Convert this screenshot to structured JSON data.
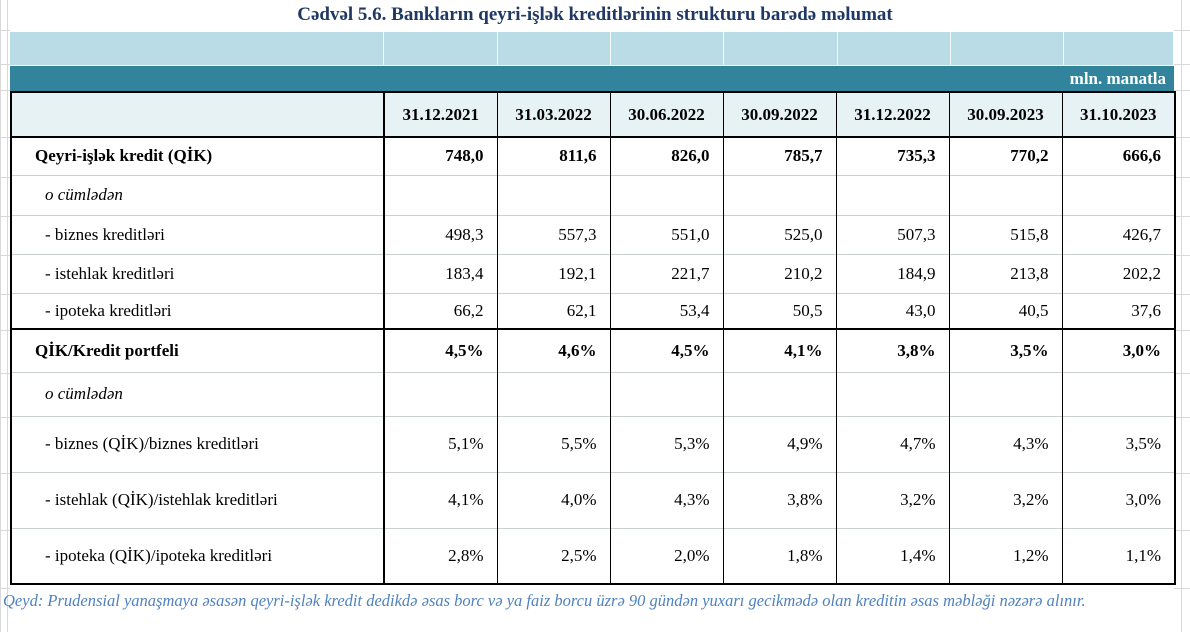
{
  "title": "Cədvəl 5.6. Bankların qeyri-işlək kreditlərinin strukturu barədə məlumat",
  "unit_label": "mln. manatla",
  "table": {
    "columns": [
      "31.12.2021",
      "31.03.2022",
      "30.06.2022",
      "30.09.2022",
      "31.12.2022",
      "30.09.2023",
      "31.10.2023"
    ],
    "rows": [
      {
        "label": "Qeyri-işlək kredit (QİK)",
        "emphasis": "bold",
        "section_start": false,
        "values": [
          "748,0",
          "811,6",
          "826,0",
          "785,7",
          "735,3",
          "770,2",
          "666,6"
        ]
      },
      {
        "label": "o cümlədən",
        "emphasis": "italic",
        "section_start": false,
        "values": [
          "",
          "",
          "",
          "",
          "",
          "",
          ""
        ]
      },
      {
        "label": "- biznes kreditləri",
        "emphasis": "plain",
        "section_start": false,
        "values": [
          "498,3",
          "557,3",
          "551,0",
          "525,0",
          "507,3",
          "515,8",
          "426,7"
        ]
      },
      {
        "label": "- istehlak kreditləri",
        "emphasis": "plain",
        "section_start": false,
        "values": [
          "183,4",
          "192,1",
          "221,7",
          "210,2",
          "184,9",
          "213,8",
          "202,2"
        ]
      },
      {
        "label": "- ipoteka kreditləri",
        "emphasis": "plain",
        "section_start": false,
        "values": [
          "66,2",
          "62,1",
          "53,4",
          "50,5",
          "43,0",
          "40,5",
          "37,6"
        ]
      },
      {
        "label": "QİK/Kredit portfeli",
        "emphasis": "bold",
        "section_start": true,
        "values": [
          "4,5%",
          "4,6%",
          "4,5%",
          "4,1%",
          "3,8%",
          "3,5%",
          "3,0%"
        ]
      },
      {
        "label": "o cümlədən",
        "emphasis": "italic",
        "section_start": false,
        "values": [
          "",
          "",
          "",
          "",
          "",
          "",
          ""
        ]
      },
      {
        "label": "- biznes (QİK)/biznes kreditləri",
        "emphasis": "plain",
        "section_start": false,
        "values": [
          "5,1%",
          "5,5%",
          "5,3%",
          "4,9%",
          "4,7%",
          "4,3%",
          "3,5%"
        ]
      },
      {
        "label": "- istehlak (QİK)/istehlak kreditləri",
        "emphasis": "plain",
        "section_start": false,
        "values": [
          "4,1%",
          "4,0%",
          "4,3%",
          "3,8%",
          "3,2%",
          "3,2%",
          "3,0%"
        ]
      },
      {
        "label": "- ipoteka (QİK)/ipoteka kreditləri",
        "emphasis": "plain",
        "section_start": false,
        "values": [
          "2,8%",
          "2,5%",
          "2,0%",
          "1,8%",
          "1,4%",
          "1,2%",
          "1,1%"
        ]
      }
    ]
  },
  "note": "Qeyd: Prudensial yanaşmaya əsasən qeyri-işlək kredit dedikdə əsas borc və ya faiz borcu üzrə 90 gündən yuxarı gecikmədə olan kreditin əsas məbləği nəzərə alınır.",
  "colors": {
    "title_text": "#1f3864",
    "band_light": "#b9dce6",
    "band_teal": "#31849b",
    "header_cell_bg": "#e7f2f5",
    "note_text": "#4f81bd"
  }
}
